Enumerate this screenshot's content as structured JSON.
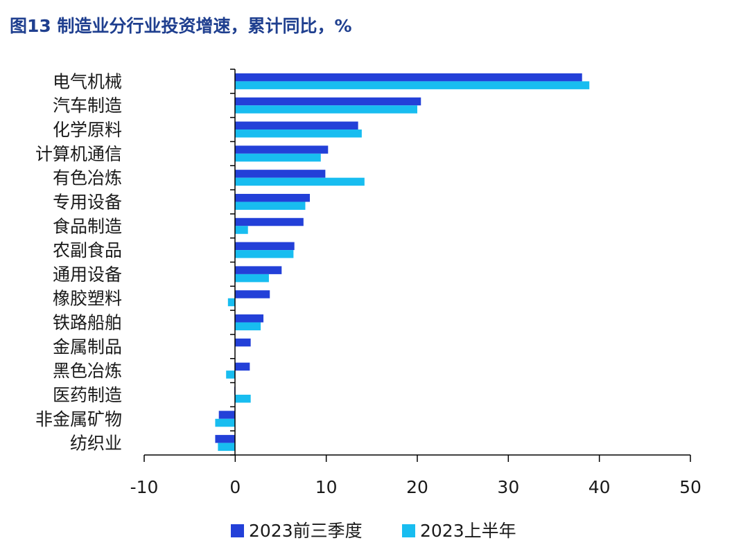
{
  "title": "图13 制造业分行业投资增速，累计同比，%",
  "colors": {
    "series1": "#2340d8",
    "series2": "#18bdf0",
    "axis": "#000000"
  },
  "chart_data": {
    "type": "bar",
    "orientation": "horizontal",
    "categories": [
      "电气机械",
      "汽车制造",
      "化学原料",
      "计算机通信",
      "有色冶炼",
      "专用设备",
      "食品制造",
      "农副食品",
      "通用设备",
      "橡胶塑料",
      "铁路船舶",
      "金属制品",
      "黑色冶炼",
      "医药制造",
      "非金属矿物",
      "纺织业"
    ],
    "series": [
      {
        "name": "2023前三季度",
        "values": [
          38.1,
          20.4,
          13.5,
          10.2,
          9.9,
          8.2,
          7.5,
          6.5,
          5.1,
          3.8,
          3.1,
          1.7,
          1.6,
          -0.1,
          -1.8,
          -2.2
        ]
      },
      {
        "name": "2023上半年",
        "values": [
          38.9,
          20.0,
          13.9,
          9.4,
          14.2,
          7.7,
          1.4,
          6.4,
          3.7,
          -0.8,
          2.8,
          0.0,
          -1.0,
          1.7,
          -2.2,
          -1.9
        ]
      }
    ],
    "xlim": [
      -10,
      50
    ],
    "xticks": [
      "-10",
      "0",
      "10",
      "20",
      "30",
      "40",
      "50"
    ],
    "legend_position": "bottom",
    "grid": false
  }
}
